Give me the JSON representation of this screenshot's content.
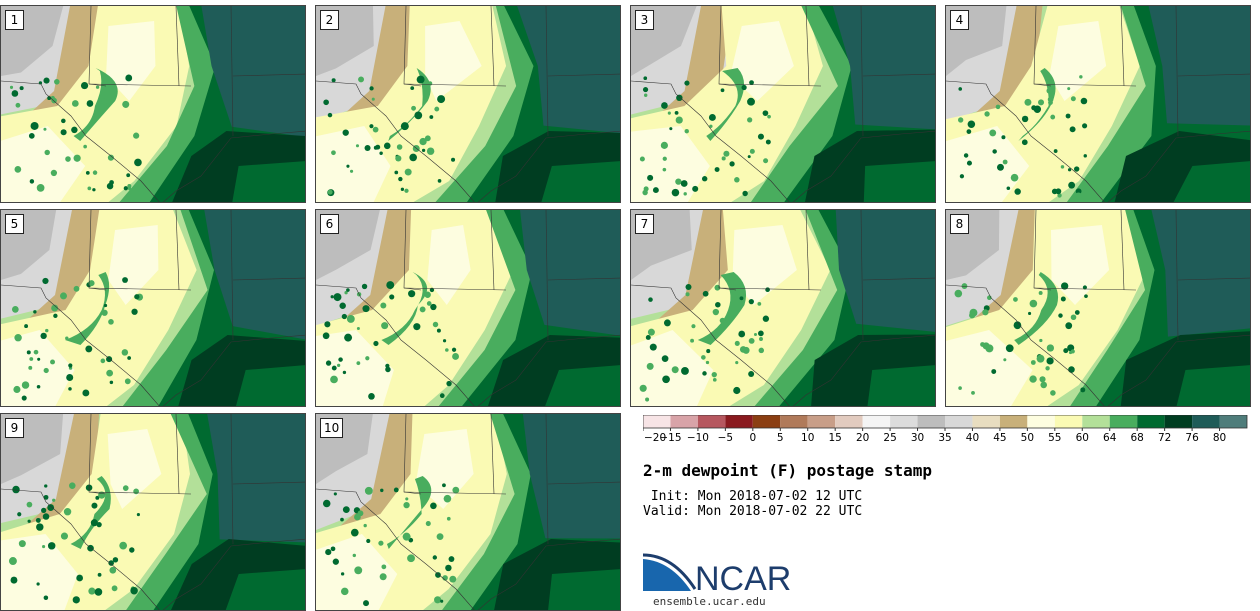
{
  "panels": [
    {
      "label": "1"
    },
    {
      "label": "2"
    },
    {
      "label": "3"
    },
    {
      "label": "4"
    },
    {
      "label": "5"
    },
    {
      "label": "6"
    },
    {
      "label": "7"
    },
    {
      "label": "8"
    },
    {
      "label": "9"
    },
    {
      "label": "10"
    }
  ],
  "colorbar": {
    "ticks": [
      "−20",
      "−15",
      "−10",
      "−5",
      "0",
      "5",
      "10",
      "15",
      "20",
      "25",
      "30",
      "35",
      "40",
      "45",
      "50",
      "55",
      "60",
      "64",
      "68",
      "72",
      "76",
      "80"
    ],
    "colors": [
      "#f7e4e6",
      "#d8a3a8",
      "#b6575f",
      "#8a1a1f",
      "#8b3e12",
      "#b07a5a",
      "#c89e88",
      "#e2cbbf",
      "#f4f4f4",
      "#dcdcdc",
      "#bdbdbd",
      "#d8d8d8",
      "#e8ddc0",
      "#c8b07a",
      "#fdfde0",
      "#fafab4",
      "#b3e099",
      "#49ad5e",
      "#006a30",
      "#003d21",
      "#1f5c58",
      "#4f7d7b"
    ]
  },
  "title": "2-m dewpoint (F) postage stamp",
  "init_line": " Init: Mon 2018-07-02 12 UTC",
  "valid_line": "Valid: Mon 2018-07-02 22 UTC",
  "logo": {
    "text": "NCAR",
    "url": "ensemble.ucar.edu",
    "colors": {
      "blue": "#1866ad",
      "navy": "#1d3d6c"
    }
  }
}
